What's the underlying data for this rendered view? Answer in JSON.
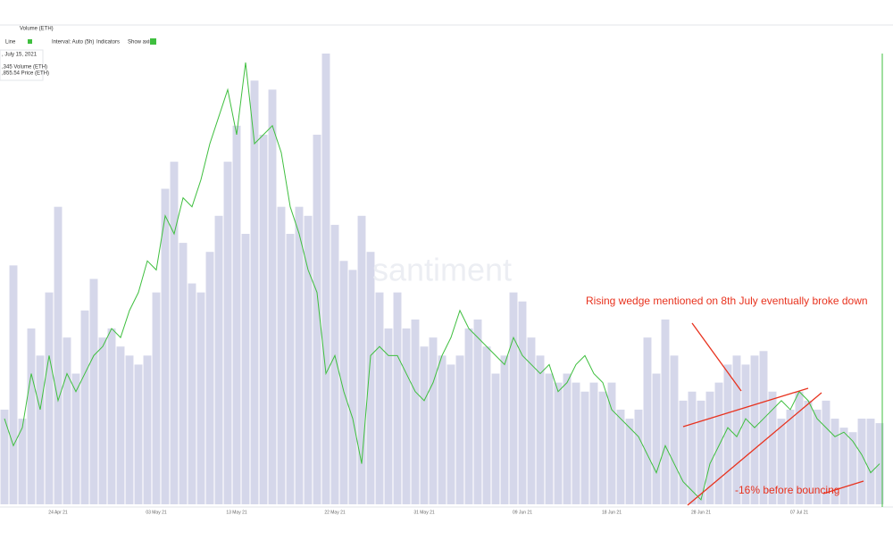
{
  "toolbar": {
    "tab": "Volume (ETH)",
    "chart_style": "Line",
    "interval": "Interval: Auto (5h)",
    "indicators": "Indicators",
    "show_axis": "Show axis"
  },
  "tooltip": {
    "date": ", July 15, 2021",
    "volume": ",345 Volume (ETH)",
    "price": ",855.54 Price (ETH)"
  },
  "chart_data": {
    "type": "bar-line",
    "watermark": "santiment",
    "categories": [
      null,
      null,
      null,
      null,
      null,
      null,
      "24 Apr 21",
      null,
      null,
      null,
      null,
      null,
      null,
      null,
      null,
      null,
      null,
      "03 May 21",
      null,
      null,
      null,
      null,
      null,
      null,
      null,
      null,
      "13 May 21",
      null,
      null,
      null,
      null,
      null,
      null,
      null,
      null,
      null,
      null,
      "22 May 21",
      null,
      null,
      null,
      null,
      null,
      null,
      null,
      null,
      null,
      "31 May 21",
      null,
      null,
      null,
      null,
      null,
      null,
      null,
      null,
      null,
      null,
      "09 Jun 21",
      null,
      null,
      null,
      null,
      null,
      null,
      null,
      null,
      null,
      "18 Jun 21",
      null,
      null,
      null,
      null,
      null,
      null,
      null,
      null,
      null,
      "28 Jun 21",
      null,
      null,
      null,
      null,
      null,
      null,
      null,
      null,
      null,
      null,
      "07 Jul 21",
      null,
      null,
      null,
      null,
      null,
      null,
      null,
      null,
      null
    ],
    "ylim": [
      0,
      100
    ],
    "series": [
      {
        "name": "Volume (ETH)",
        "color": "#d5d7ea",
        "kind": "bar",
        "values": [
          21,
          53,
          19,
          39,
          33,
          47,
          66,
          37,
          29,
          43,
          50,
          37,
          39,
          35,
          33,
          31,
          33,
          47,
          70,
          76,
          58,
          49,
          47,
          56,
          64,
          76,
          84,
          60,
          94,
          82,
          92,
          66,
          60,
          66,
          64,
          82,
          100,
          62,
          54,
          52,
          64,
          56,
          47,
          39,
          47,
          39,
          41,
          35,
          37,
          33,
          31,
          33,
          39,
          41,
          35,
          29,
          33,
          47,
          45,
          37,
          33,
          29,
          27,
          29,
          27,
          25,
          27,
          25,
          27,
          21,
          19,
          21,
          37,
          29,
          41,
          33,
          23,
          25,
          23,
          25,
          27,
          31,
          33,
          31,
          33,
          34,
          25,
          19,
          21,
          25,
          23,
          21,
          23,
          19,
          17,
          16,
          19,
          19,
          18
        ]
      },
      {
        "name": "Price (ETH)",
        "color": "#3fbf3f",
        "kind": "line",
        "values": [
          19,
          13,
          17,
          29,
          21,
          33,
          23,
          29,
          25,
          29,
          33,
          35,
          39,
          37,
          43,
          47,
          54,
          52,
          64,
          60,
          68,
          66,
          72,
          80,
          86,
          92,
          82,
          98,
          80,
          82,
          84,
          78,
          66,
          60,
          52,
          47,
          29,
          33,
          25,
          19,
          9,
          33,
          35,
          33,
          33,
          29,
          25,
          23,
          27,
          33,
          37,
          43,
          39,
          37,
          35,
          33,
          31,
          37,
          33,
          31,
          29,
          31,
          25,
          27,
          31,
          33,
          29,
          27,
          21,
          19,
          17,
          15,
          11,
          7,
          13,
          9,
          5,
          3,
          1,
          9,
          13,
          17,
          15,
          19,
          17,
          19,
          21,
          23,
          21,
          25,
          23,
          19,
          17,
          15,
          16,
          14,
          11,
          7,
          9
        ]
      }
    ],
    "annotations": [
      "Rising wedge mentioned on 8th July eventually broke down",
      "-16% before bouncing"
    ]
  }
}
